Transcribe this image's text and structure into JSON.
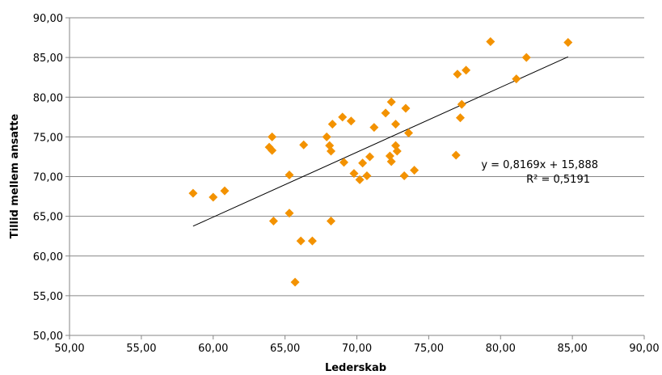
{
  "chart_data": {
    "type": "scatter",
    "title": "",
    "xlabel": "Lederskab",
    "ylabel": "Tillid mellem ansatte",
    "xlim": [
      50,
      90
    ],
    "ylim": [
      50,
      90
    ],
    "x_ticks": [
      "50,00",
      "55,00",
      "60,00",
      "65,00",
      "70,00",
      "75,00",
      "80,00",
      "85,00",
      "90,00"
    ],
    "y_ticks": [
      "50,00",
      "55,00",
      "60,00",
      "65,00",
      "70,00",
      "75,00",
      "80,00",
      "85,00",
      "90,00"
    ],
    "grid": "horizontal",
    "marker_color": "#f39200",
    "trendline_color": "#000000",
    "points": [
      [
        58.6,
        67.9
      ],
      [
        60.0,
        67.4
      ],
      [
        60.8,
        68.2
      ],
      [
        63.9,
        73.7
      ],
      [
        64.1,
        73.3
      ],
      [
        64.1,
        75.0
      ],
      [
        64.2,
        64.4
      ],
      [
        65.3,
        70.2
      ],
      [
        65.3,
        65.4
      ],
      [
        65.7,
        56.7
      ],
      [
        66.1,
        61.9
      ],
      [
        66.3,
        74.0
      ],
      [
        66.9,
        61.9
      ],
      [
        67.9,
        75.0
      ],
      [
        68.1,
        73.9
      ],
      [
        68.2,
        73.2
      ],
      [
        68.2,
        64.4
      ],
      [
        68.3,
        76.6
      ],
      [
        69.0,
        77.5
      ],
      [
        69.1,
        71.8
      ],
      [
        69.6,
        77.0
      ],
      [
        69.8,
        70.4
      ],
      [
        70.2,
        69.6
      ],
      [
        70.4,
        71.7
      ],
      [
        70.7,
        70.1
      ],
      [
        70.9,
        72.5
      ],
      [
        71.2,
        76.2
      ],
      [
        72.0,
        78.0
      ],
      [
        72.3,
        72.6
      ],
      [
        72.4,
        71.9
      ],
      [
        72.4,
        79.4
      ],
      [
        72.7,
        73.9
      ],
      [
        72.7,
        76.6
      ],
      [
        72.8,
        73.2
      ],
      [
        73.3,
        70.1
      ],
      [
        73.4,
        78.6
      ],
      [
        73.6,
        75.5
      ],
      [
        74.0,
        70.8
      ],
      [
        76.9,
        72.7
      ],
      [
        77.0,
        82.9
      ],
      [
        77.2,
        77.4
      ],
      [
        77.3,
        79.1
      ],
      [
        77.6,
        83.4
      ],
      [
        79.3,
        87.0
      ],
      [
        81.1,
        82.3
      ],
      [
        81.8,
        85.0
      ],
      [
        84.7,
        86.9
      ]
    ],
    "trendline": {
      "type": "linear",
      "slope": 0.8169,
      "intercept": 15.888,
      "x_range": [
        58.6,
        84.7
      ],
      "equation_label": "y = 0,8169x + 15,888",
      "r2_label": "R² = 0,5191"
    }
  }
}
